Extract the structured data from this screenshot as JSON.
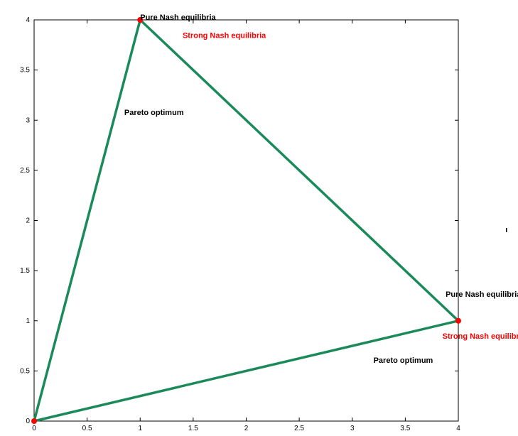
{
  "chart_data": {
    "type": "line",
    "title": "",
    "xlabel": "",
    "ylabel": "",
    "xlim": [
      0,
      4
    ],
    "ylim": [
      0,
      4
    ],
    "xticks": [
      "0",
      "0.5",
      "1",
      "1.5",
      "2",
      "2.5",
      "3",
      "3.5",
      "4"
    ],
    "yticks": [
      "0",
      "0.5",
      "1",
      "1.5",
      "2",
      "2.5",
      "3",
      "3.5",
      "4"
    ],
    "grid": false,
    "series": [
      {
        "x": [
          0,
          1,
          4,
          0
        ],
        "y": [
          0,
          4,
          1,
          0
        ],
        "color": "#1a8a5a"
      }
    ],
    "points": [
      {
        "x": 0,
        "y": 0,
        "color": "#ff0000"
      },
      {
        "x": 1,
        "y": 4,
        "color": "#ff0000"
      },
      {
        "x": 4,
        "y": 1,
        "color": "#ff0000"
      }
    ],
    "annotations": [
      {
        "text": "Pure Nash equilibria",
        "x": 1.0,
        "y": 4.0,
        "color": "#000000"
      },
      {
        "text": "Strong Nash equilibria",
        "x": 1.4,
        "y": 3.82,
        "color": "#ff0000"
      },
      {
        "text": "Pareto optimum",
        "x": 0.85,
        "y": 3.05,
        "color": "#000000"
      },
      {
        "text": "Pure Nash equilibria",
        "x": 3.88,
        "y": 1.24,
        "color": "#000000"
      },
      {
        "text": "Strong Nash equilibria",
        "x": 3.85,
        "y": 0.82,
        "color": "#ff0000"
      },
      {
        "text": "Pareto optimum",
        "x": 3.2,
        "y": 0.58,
        "color": "#000000"
      }
    ]
  }
}
